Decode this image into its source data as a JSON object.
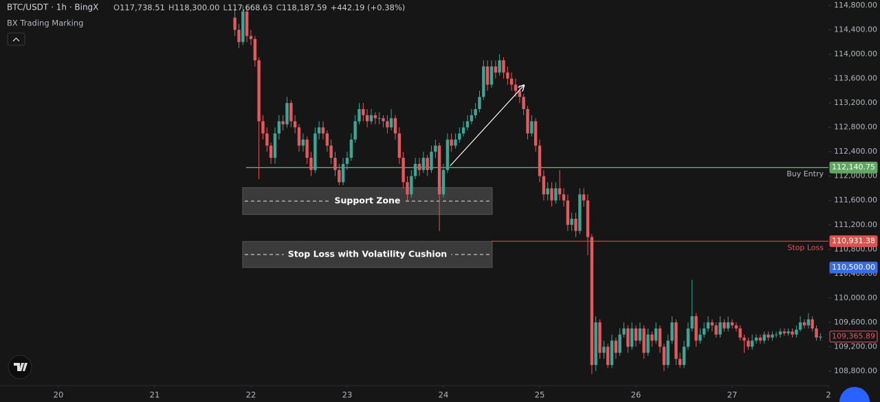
{
  "chart_data": {
    "type": "candlestick",
    "symbol": "BTC/USDT · 1h · BingX",
    "ohlc_legend": [
      {
        "label": "O",
        "value": "117,738.51"
      },
      {
        "label": "H",
        "value": "118,300.00"
      },
      {
        "label": "L",
        "value": "117,668.63"
      },
      {
        "label": "C",
        "value": "118,187.59"
      }
    ],
    "change": "+442.19 (+0.38%)",
    "indicator": "BX Trading Marking",
    "up_color": "#3ea596",
    "down_color": "#e2595e",
    "xlim": [
      19.393,
      28.0
    ],
    "xticks": [
      20,
      21,
      22,
      23,
      24,
      25,
      26,
      27,
      {
        "value": 28,
        "label": "2"
      }
    ],
    "ylim": [
      108563,
      114890
    ],
    "yticks": [
      {
        "value": 108800,
        "label": "108,800.00"
      },
      {
        "value": 109200,
        "label": "109,200.00"
      },
      {
        "value": 109600,
        "label": "109,600.00"
      },
      {
        "value": 110000,
        "label": "110,000.00"
      },
      {
        "value": 110400,
        "label": "110,400.00"
      },
      {
        "value": 110800,
        "label": "110,800.00"
      },
      {
        "value": 111200,
        "label": "111,200.00"
      },
      {
        "value": 111600,
        "label": "111,600.00"
      },
      {
        "value": 112000,
        "label": "112,000.00"
      },
      {
        "value": 112400,
        "label": "112,400.00"
      },
      {
        "value": 112800,
        "label": "112,800.00"
      },
      {
        "value": 113200,
        "label": "113,200.00"
      },
      {
        "value": 113600,
        "label": "113,600.00"
      },
      {
        "value": 114000,
        "label": "114,000.00"
      },
      {
        "value": 114400,
        "label": "114,400.00"
      },
      {
        "value": 114800,
        "label": "114,800.00"
      }
    ],
    "x": [
      21.833,
      21.875,
      21.917,
      21.958,
      22,
      22.042,
      22.083,
      22.125,
      22.167,
      22.208,
      22.25,
      22.292,
      22.333,
      22.375,
      22.417,
      22.458,
      22.5,
      22.542,
      22.583,
      22.625,
      22.667,
      22.708,
      22.75,
      22.792,
      22.833,
      22.875,
      22.917,
      22.958,
      23,
      23.042,
      23.083,
      23.125,
      23.167,
      23.208,
      23.25,
      23.292,
      23.333,
      23.375,
      23.417,
      23.458,
      23.5,
      23.542,
      23.583,
      23.625,
      23.667,
      23.708,
      23.75,
      23.792,
      23.833,
      23.875,
      23.917,
      23.958,
      24,
      24.042,
      24.083,
      24.125,
      24.167,
      24.208,
      24.25,
      24.292,
      24.333,
      24.375,
      24.417,
      24.458,
      24.5,
      24.542,
      24.583,
      24.625,
      24.667,
      24.708,
      24.75,
      24.792,
      24.833,
      24.875,
      24.917,
      24.958,
      25,
      25.042,
      25.083,
      25.125,
      25.167,
      25.208,
      25.25,
      25.292,
      25.333,
      25.375,
      25.417,
      25.458,
      25.5,
      25.542,
      25.583,
      25.625,
      25.667,
      25.708,
      25.75,
      25.792,
      25.833,
      25.875,
      25.917,
      25.958,
      26,
      26.042,
      26.083,
      26.125,
      26.167,
      26.208,
      26.25,
      26.292,
      26.333,
      26.375,
      26.417,
      26.458,
      26.5,
      26.542,
      26.583,
      26.625,
      26.667,
      26.708,
      26.75,
      26.792,
      26.833,
      26.875,
      26.917,
      26.958,
      27,
      27.042,
      27.083,
      27.125,
      27.167,
      27.208,
      27.25,
      27.292,
      27.333,
      27.375,
      27.417,
      27.458,
      27.5,
      27.542,
      27.583,
      27.625,
      27.667,
      27.708,
      27.75,
      27.792,
      27.833,
      27.875,
      27.917
    ],
    "ohlc": [
      [
        114600,
        114750,
        114300,
        114400
      ],
      [
        114400,
        114500,
        114100,
        114200
      ],
      [
        114200,
        114800,
        114150,
        114700
      ],
      [
        114700,
        114780,
        114200,
        114300
      ],
      [
        114300,
        114400,
        114150,
        114250
      ],
      [
        114250,
        114300,
        113800,
        113900
      ],
      [
        113900,
        113950,
        111950,
        112900
      ],
      [
        112900,
        113000,
        112600,
        112700
      ],
      [
        112700,
        112800,
        112400,
        112500
      ],
      [
        112500,
        112550,
        112200,
        112300
      ],
      [
        112300,
        112800,
        112200,
        112700
      ],
      [
        112700,
        113000,
        112600,
        112900
      ],
      [
        112900,
        113000,
        112750,
        112850
      ],
      [
        112850,
        113300,
        112800,
        113200
      ],
      [
        113200,
        113250,
        112800,
        112900
      ],
      [
        112900,
        113000,
        112700,
        112800
      ],
      [
        112800,
        112850,
        112400,
        112500
      ],
      [
        112500,
        112700,
        112400,
        112600
      ],
      [
        112600,
        112650,
        112200,
        112300
      ],
      [
        112300,
        112400,
        112000,
        112100
      ],
      [
        112100,
        112800,
        112050,
        112700
      ],
      [
        112700,
        112900,
        112600,
        112800
      ],
      [
        112800,
        112900,
        112600,
        112700
      ],
      [
        112700,
        112750,
        112400,
        112500
      ],
      [
        112500,
        112600,
        112200,
        112300
      ],
      [
        112300,
        112400,
        112000,
        112100
      ],
      [
        112100,
        112200,
        111850,
        111900
      ],
      [
        111900,
        112300,
        111850,
        112200
      ],
      [
        112200,
        112400,
        112100,
        112300
      ],
      [
        112300,
        112700,
        112250,
        112600
      ],
      [
        112600,
        113000,
        112550,
        112900
      ],
      [
        112900,
        113200,
        112850,
        113100
      ],
      [
        113100,
        113200,
        112900,
        113000
      ],
      [
        113000,
        113100,
        112800,
        112900
      ],
      [
        112900,
        113100,
        112850,
        113000
      ],
      [
        113000,
        113050,
        112850,
        112950
      ],
      [
        112950,
        113050,
        112850,
        112950
      ],
      [
        112950,
        113000,
        112800,
        112900
      ],
      [
        112900,
        113000,
        112700,
        112800
      ],
      [
        112800,
        113100,
        112750,
        112950
      ],
      [
        112950,
        113000,
        112600,
        112700
      ],
      [
        112700,
        112800,
        112200,
        112300
      ],
      [
        112300,
        112400,
        111800,
        111900
      ],
      [
        111900,
        112000,
        111600,
        111700
      ],
      [
        111700,
        112100,
        111650,
        112000
      ],
      [
        112000,
        112300,
        111950,
        112200
      ],
      [
        112200,
        112300,
        112000,
        112100
      ],
      [
        112100,
        112400,
        112050,
        112300
      ],
      [
        112300,
        112350,
        112000,
        112100
      ],
      [
        112100,
        112500,
        112050,
        112400
      ],
      [
        112400,
        112600,
        112300,
        112500
      ],
      [
        112500,
        112550,
        111100,
        111700
      ],
      [
        111700,
        112200,
        111650,
        112100
      ],
      [
        112100,
        112700,
        112050,
        112600
      ],
      [
        112600,
        112700,
        112400,
        112500
      ],
      [
        112500,
        112700,
        112450,
        112600
      ],
      [
        112600,
        112800,
        112550,
        112700
      ],
      [
        112700,
        112900,
        112650,
        112800
      ],
      [
        112800,
        113000,
        112750,
        112900
      ],
      [
        112900,
        113100,
        112850,
        113000
      ],
      [
        113000,
        113200,
        112950,
        113100
      ],
      [
        113100,
        113400,
        113050,
        113300
      ],
      [
        113300,
        113900,
        113250,
        113800
      ],
      [
        113800,
        113900,
        113400,
        113500
      ],
      [
        113500,
        113900,
        113450,
        113800
      ],
      [
        113800,
        113900,
        113600,
        113700
      ],
      [
        113700,
        114000,
        113650,
        113900
      ],
      [
        113900,
        113950,
        113600,
        113700
      ],
      [
        113700,
        113800,
        113500,
        113600
      ],
      [
        113600,
        113700,
        113400,
        113500
      ],
      [
        113500,
        113600,
        113300,
        113400
      ],
      [
        113400,
        113500,
        113200,
        113300
      ],
      [
        113300,
        113350,
        113000,
        113100
      ],
      [
        113100,
        113150,
        112600,
        112700
      ],
      [
        112700,
        113000,
        112650,
        112900
      ],
      [
        112900,
        112950,
        112400,
        112500
      ],
      [
        112500,
        112600,
        111900,
        112000
      ],
      [
        112000,
        112100,
        111600,
        111700
      ],
      [
        111700,
        111900,
        111600,
        111800
      ],
      [
        111800,
        111900,
        111500,
        111600
      ],
      [
        111600,
        111900,
        111550,
        111800
      ],
      [
        111800,
        112100,
        111600,
        111700
      ],
      [
        111700,
        111800,
        111500,
        111600
      ],
      [
        111600,
        111700,
        111100,
        111200
      ],
      [
        111200,
        111400,
        111100,
        111300
      ],
      [
        111300,
        111400,
        111000,
        111100
      ],
      [
        111100,
        111800,
        111050,
        111700
      ],
      [
        111700,
        111800,
        111500,
        111600
      ],
      [
        111600,
        111700,
        110700,
        111000
      ],
      [
        111000,
        111050,
        108750,
        108900
      ],
      [
        108900,
        109700,
        108800,
        109600
      ],
      [
        109600,
        109650,
        109000,
        109100
      ],
      [
        109100,
        109300,
        109000,
        109200
      ],
      [
        109200,
        109250,
        108850,
        108900
      ],
      [
        108900,
        109400,
        108850,
        109300
      ],
      [
        109300,
        109350,
        109000,
        109100
      ],
      [
        109100,
        109500,
        109050,
        109400
      ],
      [
        109400,
        109600,
        109350,
        109500
      ],
      [
        109500,
        109550,
        109100,
        109200
      ],
      [
        109200,
        109600,
        109150,
        109500
      ],
      [
        109500,
        109550,
        109200,
        109300
      ],
      [
        109300,
        109600,
        109250,
        109500
      ],
      [
        109500,
        109550,
        109000,
        109100
      ],
      [
        109100,
        109500,
        109050,
        109400
      ],
      [
        109400,
        109450,
        109200,
        109300
      ],
      [
        109300,
        109600,
        109250,
        109500
      ],
      [
        109500,
        109550,
        109100,
        109200
      ],
      [
        109200,
        109250,
        108800,
        108900
      ],
      [
        108900,
        109400,
        108850,
        109300
      ],
      [
        109300,
        109700,
        109250,
        109600
      ],
      [
        109600,
        109650,
        108900,
        109000
      ],
      [
        109000,
        109100,
        108850,
        108900
      ],
      [
        108900,
        109300,
        108850,
        109200
      ],
      [
        109200,
        109600,
        109150,
        109500
      ],
      [
        109500,
        110300,
        109450,
        109700
      ],
      [
        109700,
        109750,
        109200,
        109300
      ],
      [
        109300,
        109500,
        109250,
        109400
      ],
      [
        109400,
        109600,
        109350,
        109500
      ],
      [
        109500,
        109700,
        109450,
        109600
      ],
      [
        109600,
        109650,
        109450,
        109550
      ],
      [
        109550,
        109600,
        109350,
        109400
      ],
      [
        109400,
        109700,
        109350,
        109600
      ],
      [
        109600,
        109650,
        109450,
        109500
      ],
      [
        109500,
        109700,
        109450,
        109600
      ],
      [
        109600,
        109650,
        109500,
        109550
      ],
      [
        109550,
        109600,
        109450,
        109500
      ],
      [
        109500,
        109550,
        109300,
        109350
      ],
      [
        109350,
        109400,
        109100,
        109300
      ],
      [
        109300,
        109350,
        109150,
        109200
      ],
      [
        109200,
        109400,
        109150,
        109300
      ],
      [
        109300,
        109400,
        109250,
        109350
      ],
      [
        109350,
        109400,
        109250,
        109300
      ],
      [
        109300,
        109450,
        109250,
        109400
      ],
      [
        109400,
        109450,
        109300,
        109350
      ],
      [
        109350,
        109450,
        109300,
        109400
      ],
      [
        109400,
        109450,
        109350,
        109400
      ],
      [
        109400,
        109500,
        109350,
        109450
      ],
      [
        109450,
        109500,
        109380,
        109420
      ],
      [
        109420,
        109500,
        109380,
        109450
      ],
      [
        109450,
        109500,
        109350,
        109400
      ],
      [
        109400,
        109550,
        109350,
        109480
      ],
      [
        109480,
        109700,
        109450,
        109600
      ],
      [
        109600,
        109650,
        109500,
        109550
      ],
      [
        109550,
        109750,
        109500,
        109650
      ],
      [
        109650,
        109700,
        109450,
        109500
      ],
      [
        109500,
        109550,
        109300,
        109350
      ],
      [
        109350,
        109420,
        109300,
        109365.89
      ]
    ],
    "price_lines": [
      {
        "label": "Buy Entry",
        "value": 112140.75,
        "value_label": "112,140.75",
        "color": "#5ea862",
        "line_color": "#9fd3a5",
        "x_start": 21.95
      },
      {
        "label": "Stop Loss",
        "value": 110931.38,
        "value_label": "110,931.38",
        "color": "#d9534f",
        "line_color": "#e0555a",
        "x_start": 24.5
      }
    ],
    "price_tags": [
      {
        "value": 110500,
        "label": "110,500.00",
        "color": "#3a6ee0"
      },
      {
        "value": 109365.89,
        "label": "109,365.89",
        "color": "#e2595e"
      }
    ],
    "zones": [
      {
        "label": "Support Zone",
        "x": [
          21.914,
          24.507
        ],
        "y": [
          111370,
          111810
        ]
      },
      {
        "label": "Stop Loss with Volatility Cushion",
        "x": [
          21.914,
          24.507
        ],
        "y": [
          110500,
          110927
        ]
      }
    ],
    "arrow": {
      "x": [
        24.071,
        24.836
      ],
      "y": [
        112170,
        113490
      ]
    }
  }
}
